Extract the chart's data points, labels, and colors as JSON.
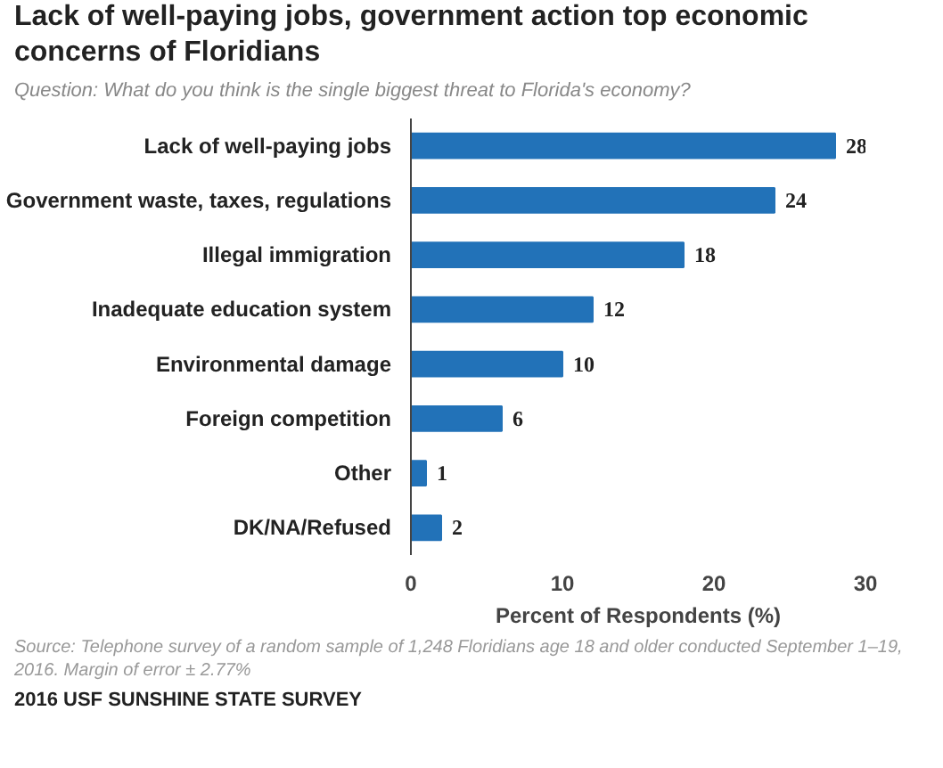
{
  "chart_data": {
    "type": "bar",
    "orientation": "horizontal",
    "title": "Lack of well-paying jobs, government action top economic concerns of Floridians",
    "subtitle": "Question: What do you think is the single biggest threat to Florida's economy?",
    "categories": [
      "Lack of well-paying jobs",
      "Government waste, taxes, regulations",
      "Illegal immigration",
      "Inadequate education system",
      "Environmental damage",
      "Foreign competition",
      "Other",
      "DK/NA/Refused"
    ],
    "values": [
      28,
      24,
      18,
      12,
      10,
      6,
      1,
      2
    ],
    "color": "#2272b8",
    "xlim": [
      0,
      30
    ],
    "xticks": [
      0,
      10,
      20,
      30
    ],
    "xlabel": "Percent of Respondents (%)",
    "data_labels": true,
    "grid": false,
    "annotations": [
      "Source: Telephone survey of a random sample of 1,248 Floridians age 18 and older conducted September 1–19, 2016. Margin of error ± 2.77%",
      "2016 USF SUNSHINE STATE SURVEY"
    ]
  }
}
